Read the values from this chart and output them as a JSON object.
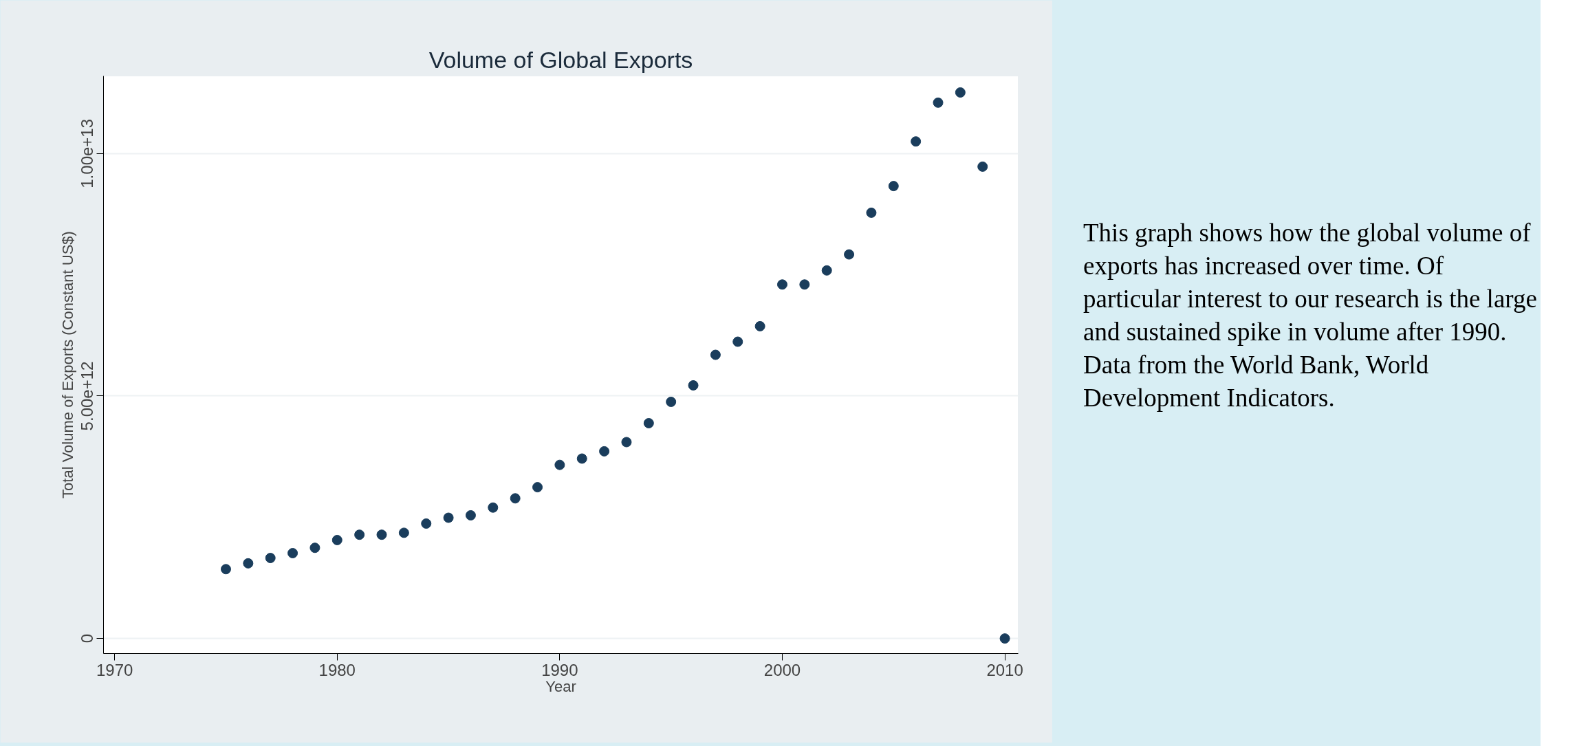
{
  "chart_data": {
    "type": "scatter",
    "title": "Volume of Global Exports",
    "xlabel": "Year",
    "ylabel": "Total Volume of Exports (Constant US$)",
    "x": [
      1975,
      1976,
      1977,
      1978,
      1979,
      1980,
      1981,
      1982,
      1983,
      1984,
      1985,
      1986,
      1987,
      1988,
      1989,
      1990,
      1991,
      1992,
      1993,
      1994,
      1995,
      1996,
      1997,
      1998,
      1999,
      2000,
      2001,
      2002,
      2003,
      2004,
      2005,
      2006,
      2007,
      2008,
      2009,
      2010
    ],
    "series": [
      {
        "color": "#1a3d5c",
        "values": [
          1430000000000.0,
          1550000000000.0,
          1660000000000.0,
          1760000000000.0,
          1870000000000.0,
          2030000000000.0,
          2140000000000.0,
          2140000000000.0,
          2180000000000.0,
          2370000000000.0,
          2490000000000.0,
          2540000000000.0,
          2700000000000.0,
          2890000000000.0,
          3120000000000.0,
          3580000000000.0,
          3710000000000.0,
          3860000000000.0,
          4050000000000.0,
          4440000000000.0,
          4880000000000.0,
          5220000000000.0,
          5850000000000.0,
          6120000000000.0,
          6440000000000.0,
          7300000000000.0,
          7300000000000.0,
          7590000000000.0,
          7920000000000.0,
          8780000000000.0,
          9330000000000.0,
          10250000000000.0,
          11050000000000.0,
          11260000000000.0,
          9730000000000.0,
          0
        ]
      }
    ],
    "xlim": [
      1969.5,
      2010.6
    ],
    "xticks": [
      1970,
      1980,
      1990,
      2000,
      2010
    ],
    "ylim": [
      -310000000000.0,
      11600000000000.0
    ],
    "yticks": [
      {
        "value": 0,
        "label": "0"
      },
      {
        "value": 5000000000000.0,
        "label": "5.00e+12"
      },
      {
        "value": 10000000000000.0,
        "label": "1.00e+13"
      }
    ],
    "grid": "y",
    "marker": "circle",
    "annotations": [
      "This graph shows how the global volume of exports has increased over time. Of particular interest to our research is the large  and sustained spike in volume after 1990. Data from  the World Bank, World Development Indicators."
    ]
  }
}
